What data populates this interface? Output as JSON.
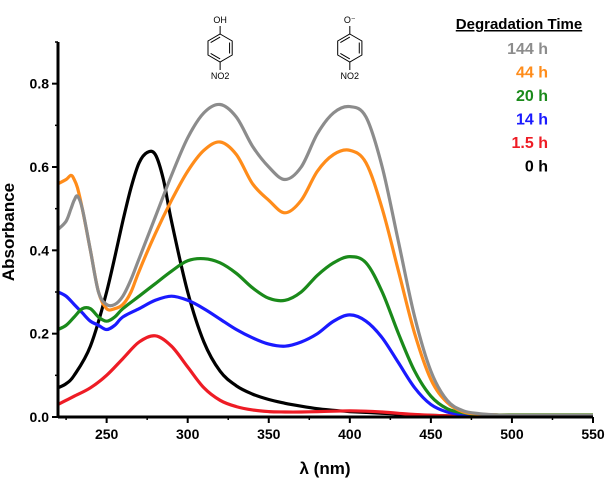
{
  "chart_data": {
    "type": "line",
    "title": "",
    "xlabel": "λ (nm)",
    "ylabel": "Absorbance",
    "xlim": [
      220,
      550
    ],
    "ylim": [
      0,
      0.9
    ],
    "xticks": [
      250,
      300,
      350,
      400,
      450,
      500,
      550
    ],
    "yticks": [
      0.0,
      0.2,
      0.4,
      0.6,
      0.8
    ],
    "ytick_labels": [
      "0.0",
      "0.2",
      "0.4",
      "0.6",
      "0.8"
    ],
    "legend_title": "Degradation Time",
    "legend_position": "top-right",
    "structures": [
      {
        "name": "4-nitrophenol",
        "top_group": "OH",
        "bottom_group": "NO2",
        "x": 320
      },
      {
        "name": "4-nitrophenolate",
        "top_group": "O⁻",
        "bottom_group": "NO2",
        "x": 400
      }
    ],
    "series": [
      {
        "name": "144 h",
        "color": "#8c8c8c",
        "x": [
          220,
          225,
          228,
          230,
          232,
          235,
          240,
          245,
          250,
          255,
          260,
          265,
          270,
          280,
          290,
          300,
          310,
          320,
          330,
          340,
          350,
          360,
          370,
          380,
          390,
          400,
          410,
          420,
          430,
          440,
          450,
          460,
          470,
          480,
          490,
          500,
          550
        ],
        "y": [
          0.45,
          0.47,
          0.5,
          0.52,
          0.53,
          0.5,
          0.4,
          0.3,
          0.27,
          0.27,
          0.29,
          0.33,
          0.38,
          0.48,
          0.58,
          0.67,
          0.73,
          0.75,
          0.72,
          0.65,
          0.6,
          0.57,
          0.6,
          0.68,
          0.73,
          0.745,
          0.72,
          0.6,
          0.42,
          0.24,
          0.11,
          0.04,
          0.015,
          0.008,
          0.005,
          0.004,
          0.004
        ]
      },
      {
        "name": "44 h",
        "color": "#ff8c1a",
        "x": [
          220,
          225,
          228,
          230,
          232,
          235,
          240,
          245,
          250,
          255,
          260,
          265,
          270,
          280,
          290,
          300,
          310,
          320,
          330,
          340,
          350,
          360,
          370,
          380,
          390,
          400,
          410,
          420,
          430,
          440,
          450,
          460,
          470,
          480,
          490,
          500,
          550
        ],
        "y": [
          0.56,
          0.57,
          0.58,
          0.57,
          0.55,
          0.5,
          0.4,
          0.3,
          0.26,
          0.26,
          0.27,
          0.3,
          0.35,
          0.44,
          0.52,
          0.59,
          0.64,
          0.66,
          0.63,
          0.56,
          0.52,
          0.49,
          0.52,
          0.59,
          0.63,
          0.64,
          0.61,
          0.5,
          0.35,
          0.2,
          0.09,
          0.035,
          0.012,
          0.007,
          0.005,
          0.004,
          0.004
        ]
      },
      {
        "name": "20 h",
        "color": "#1a8a1a",
        "x": [
          220,
          225,
          230,
          235,
          240,
          245,
          250,
          255,
          260,
          270,
          280,
          290,
          300,
          310,
          320,
          330,
          340,
          350,
          360,
          370,
          380,
          390,
          400,
          410,
          420,
          430,
          440,
          450,
          460,
          470,
          480,
          490,
          500,
          550
        ],
        "y": [
          0.21,
          0.22,
          0.24,
          0.26,
          0.26,
          0.24,
          0.23,
          0.24,
          0.26,
          0.29,
          0.32,
          0.35,
          0.375,
          0.38,
          0.37,
          0.345,
          0.31,
          0.285,
          0.28,
          0.3,
          0.34,
          0.37,
          0.385,
          0.37,
          0.3,
          0.2,
          0.11,
          0.05,
          0.02,
          0.01,
          0.006,
          0.005,
          0.005,
          0.005
        ]
      },
      {
        "name": "14 h",
        "color": "#1a1aff",
        "x": [
          220,
          225,
          230,
          235,
          240,
          245,
          250,
          255,
          260,
          270,
          280,
          290,
          300,
          310,
          320,
          330,
          340,
          350,
          360,
          370,
          380,
          390,
          400,
          410,
          420,
          430,
          440,
          450,
          460,
          470,
          480,
          490,
          500,
          550
        ],
        "y": [
          0.3,
          0.29,
          0.27,
          0.25,
          0.23,
          0.22,
          0.21,
          0.22,
          0.24,
          0.26,
          0.28,
          0.29,
          0.28,
          0.26,
          0.235,
          0.21,
          0.19,
          0.175,
          0.17,
          0.18,
          0.2,
          0.23,
          0.245,
          0.23,
          0.19,
          0.13,
          0.07,
          0.03,
          0.012,
          0.006,
          0.004,
          0.003,
          0.003,
          0.003
        ]
      },
      {
        "name": "1.5 h",
        "color": "#ee1c25",
        "x": [
          220,
          225,
          230,
          240,
          250,
          260,
          270,
          280,
          290,
          300,
          310,
          320,
          330,
          340,
          350,
          360,
          370,
          380,
          390,
          400,
          410,
          420,
          430,
          440,
          450,
          460,
          470,
          480,
          500,
          550
        ],
        "y": [
          0.03,
          0.04,
          0.05,
          0.07,
          0.1,
          0.14,
          0.18,
          0.195,
          0.17,
          0.12,
          0.07,
          0.04,
          0.025,
          0.017,
          0.013,
          0.012,
          0.012,
          0.013,
          0.014,
          0.015,
          0.014,
          0.012,
          0.009,
          0.006,
          0.004,
          0.003,
          0.002,
          0.002,
          0.002,
          0.002
        ]
      },
      {
        "name": "0 h",
        "color": "#000000",
        "x": [
          220,
          225,
          230,
          240,
          250,
          260,
          265,
          270,
          275,
          280,
          285,
          290,
          300,
          310,
          320,
          330,
          340,
          350,
          360,
          370,
          380,
          390,
          400,
          410,
          420,
          430,
          440,
          450,
          460,
          480,
          500,
          550
        ],
        "y": [
          0.07,
          0.08,
          0.1,
          0.17,
          0.3,
          0.47,
          0.55,
          0.61,
          0.635,
          0.63,
          0.57,
          0.47,
          0.3,
          0.18,
          0.11,
          0.075,
          0.055,
          0.042,
          0.033,
          0.026,
          0.02,
          0.016,
          0.013,
          0.011,
          0.009,
          0.007,
          0.005,
          0.004,
          0.003,
          0.002,
          0.002,
          0.002
        ]
      }
    ]
  }
}
